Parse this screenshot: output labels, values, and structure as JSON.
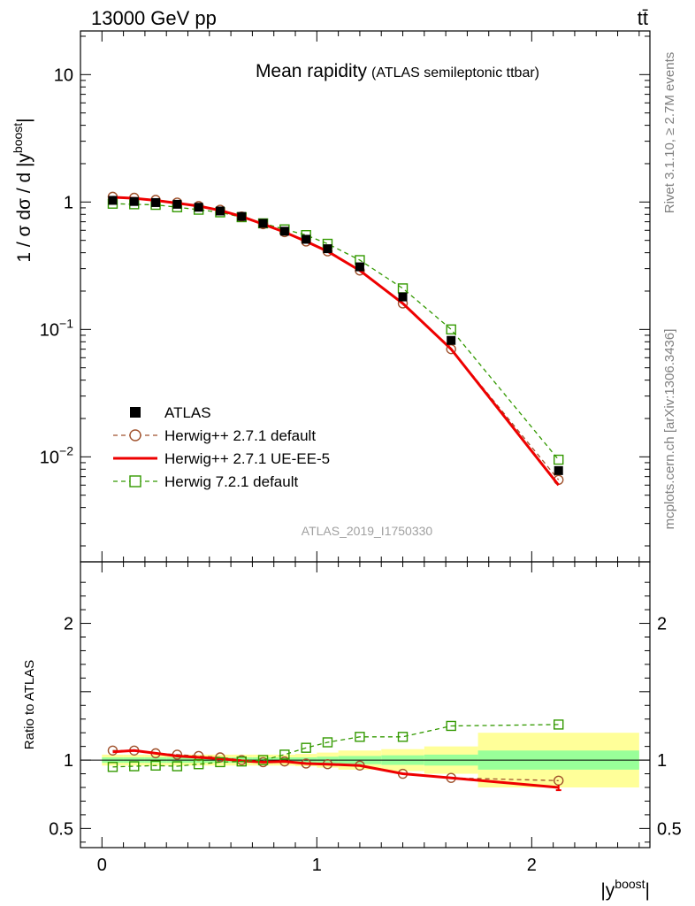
{
  "header": {
    "energy_label": "13000 GeV pp",
    "process_label": "tt̄",
    "side_label_top": "Rivet 3.1.10, ≥ 2.7M events",
    "side_label_bottom": "mcplots.cern.ch [arXiv:1306.3436]"
  },
  "chart_data": [
    {
      "type": "scatter",
      "panel": "main",
      "title": "Mean rapidity",
      "subtitle": "(ATLAS semileptonic ttbar)",
      "watermark": "ATLAS_2019_I1750330",
      "ylabel": "1 / σ dσ / d |y^boost|",
      "yscale": "log",
      "ylim": [
        0.0015,
        22
      ],
      "xlim": [
        -0.1,
        2.55
      ],
      "y_ticks": [
        {
          "value": 10,
          "label": "10"
        },
        {
          "value": 1,
          "label": "1"
        },
        {
          "value": 0.1,
          "label": "10^-1"
        },
        {
          "value": 0.01,
          "label": "10^-2"
        }
      ],
      "legend_position": "lower-left",
      "x": [
        0.05,
        0.15,
        0.25,
        0.35,
        0.45,
        0.55,
        0.65,
        0.75,
        0.85,
        0.95,
        1.05,
        1.2,
        1.4,
        1.625,
        2.125
      ],
      "series": [
        {
          "name": "ATLAS",
          "style": "square-filled",
          "color": "#000000",
          "values": [
            1.03,
            1.01,
            0.99,
            0.96,
            0.91,
            0.85,
            0.77,
            0.68,
            0.59,
            0.51,
            0.43,
            0.31,
            0.18,
            0.082,
            0.0078
          ]
        },
        {
          "name": "Herwig++ 2.7.1 default",
          "style": "circle-dashed",
          "color": "#a0522d",
          "values": [
            1.1,
            1.08,
            1.04,
            0.99,
            0.93,
            0.87,
            0.77,
            0.67,
            0.58,
            0.49,
            0.41,
            0.29,
            0.16,
            0.07,
            0.0066
          ]
        },
        {
          "name": "Herwig++ 2.7.1 UE-EE-5",
          "style": "solid-line",
          "color": "#ee0000",
          "values": [
            1.09,
            1.07,
            1.03,
            0.98,
            0.93,
            0.86,
            0.77,
            0.67,
            0.58,
            0.49,
            0.41,
            0.29,
            0.16,
            0.07,
            0.006
          ]
        },
        {
          "name": "Herwig 7.2.1 default",
          "style": "square-open-dashed",
          "color": "#339900",
          "values": [
            0.97,
            0.96,
            0.95,
            0.91,
            0.87,
            0.83,
            0.76,
            0.68,
            0.61,
            0.55,
            0.47,
            0.35,
            0.21,
            0.1,
            0.0095
          ]
        }
      ]
    },
    {
      "type": "line",
      "panel": "ratio",
      "ylabel": "Ratio to ATLAS",
      "xlabel": "|y^boost|",
      "ylim": [
        0.36,
        2.45
      ],
      "xlim": [
        -0.1,
        2.55
      ],
      "y_ticks": [
        {
          "value": 0.5,
          "label": "0.5"
        },
        {
          "value": 1,
          "label": "1"
        },
        {
          "value": 2,
          "label": "2"
        }
      ],
      "x_ticks": [
        {
          "value": 0,
          "label": "0"
        },
        {
          "value": 1,
          "label": "1"
        },
        {
          "value": 2,
          "label": "2"
        }
      ],
      "x": [
        0.05,
        0.15,
        0.25,
        0.35,
        0.45,
        0.55,
        0.65,
        0.75,
        0.85,
        0.95,
        1.05,
        1.2,
        1.4,
        1.625,
        2.125
      ],
      "bands": {
        "edges": [
          0.0,
          0.1,
          0.2,
          0.3,
          0.4,
          0.5,
          0.6,
          0.7,
          0.8,
          0.9,
          1.0,
          1.1,
          1.3,
          1.5,
          1.75,
          2.5
        ],
        "inner_color": "#99ff99",
        "outer_color": "#ffff99",
        "inner_half": [
          0.02,
          0.02,
          0.02,
          0.02,
          0.02,
          0.02,
          0.02,
          0.02,
          0.02,
          0.02,
          0.025,
          0.03,
          0.035,
          0.04,
          0.07
        ],
        "outer_half": [
          0.04,
          0.04,
          0.04,
          0.04,
          0.04,
          0.04,
          0.04,
          0.04,
          0.04,
          0.045,
          0.055,
          0.07,
          0.08,
          0.1,
          0.2
        ]
      },
      "series": [
        {
          "name": "Herwig++ 2.7.1 default",
          "style": "circle-dashed",
          "color": "#a0522d",
          "values": [
            1.07,
            1.07,
            1.05,
            1.04,
            1.03,
            1.02,
            1.0,
            0.985,
            0.99,
            0.975,
            0.97,
            0.96,
            0.9,
            0.87,
            0.85
          ]
        },
        {
          "name": "Herwig++ 2.7.1 UE-EE-5",
          "style": "solid-line",
          "color": "#ee0000",
          "values": [
            1.06,
            1.07,
            1.05,
            1.03,
            1.02,
            1.01,
            0.995,
            0.985,
            0.99,
            0.975,
            0.97,
            0.96,
            0.9,
            0.87,
            0.8
          ]
        },
        {
          "name": "Herwig 7.2.1 default",
          "style": "square-open-dashed",
          "color": "#339900",
          "values": [
            0.95,
            0.955,
            0.96,
            0.955,
            0.97,
            0.985,
            0.99,
            1.0,
            1.04,
            1.09,
            1.13,
            1.17,
            1.17,
            1.25,
            1.26
          ]
        }
      ]
    }
  ]
}
